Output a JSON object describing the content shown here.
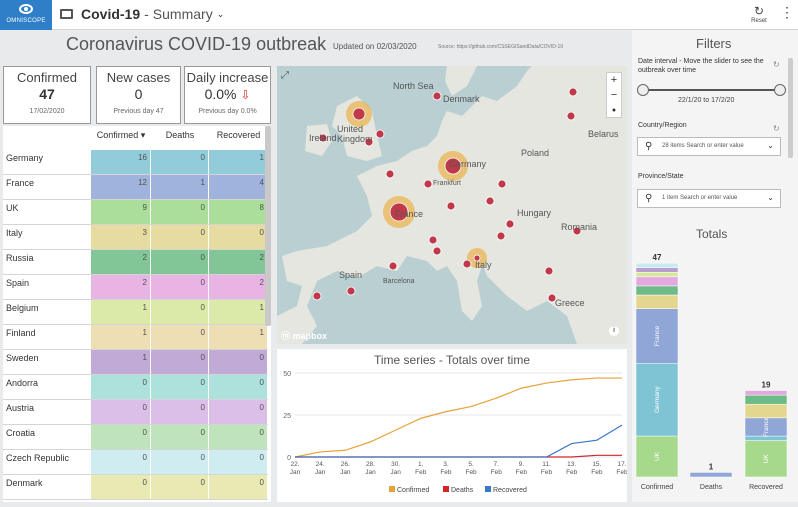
{
  "app": {
    "logo": "OMNISCOPE",
    "title": "Covid-19",
    "separator": "-",
    "subtitle": "Summary",
    "reset_label": "Reset",
    "kebab": "⋮"
  },
  "header": {
    "title": "Coronavirus COVID-19 outbreak",
    "updated": "Updated on 02/03/2020",
    "source": "Source: https://github.com/CSSEGISandData/COVID-19"
  },
  "kpis": [
    {
      "label": "Confirmed",
      "value": "47",
      "foot": "17/02/2020"
    },
    {
      "label": "New cases",
      "value": "0",
      "foot": "Previous day 47"
    },
    {
      "label": "Daily increase",
      "value": "0.0%",
      "arrow": "⇩",
      "foot": "Previous day 0.0%"
    }
  ],
  "table": {
    "columns": [
      "Confirmed",
      "Deaths",
      "Recovered"
    ],
    "rows": [
      {
        "country": "Germany",
        "confirmed": "16",
        "deaths": "0",
        "recovered": "1",
        "color": "#7fc4d4"
      },
      {
        "country": "France",
        "confirmed": "12",
        "deaths": "1",
        "recovered": "4",
        "color": "#8fa6d6"
      },
      {
        "country": "UK",
        "confirmed": "9",
        "deaths": "0",
        "recovered": "8",
        "color": "#9ed98a"
      },
      {
        "country": "Italy",
        "confirmed": "3",
        "deaths": "0",
        "recovered": "0",
        "color": "#e3d78f"
      },
      {
        "country": "Russia",
        "confirmed": "2",
        "deaths": "0",
        "recovered": "2",
        "color": "#6dbb86"
      },
      {
        "country": "Spain",
        "confirmed": "2",
        "deaths": "0",
        "recovered": "2",
        "color": "#e3a8e0"
      },
      {
        "country": "Belgium",
        "confirmed": "1",
        "deaths": "0",
        "recovered": "1",
        "color": "#d5e79a"
      },
      {
        "country": "Finland",
        "confirmed": "1",
        "deaths": "0",
        "recovered": "1",
        "color": "#ead9a8"
      },
      {
        "country": "Sweden",
        "confirmed": "1",
        "deaths": "0",
        "recovered": "0",
        "color": "#b79dd0"
      },
      {
        "country": "Andorra",
        "confirmed": "0",
        "deaths": "0",
        "recovered": "0",
        "color": "#9fdcd6"
      },
      {
        "country": "Austria",
        "confirmed": "0",
        "deaths": "0",
        "recovered": "0",
        "color": "#d7b5e6"
      },
      {
        "country": "Croatia",
        "confirmed": "0",
        "deaths": "0",
        "recovered": "0",
        "color": "#b5e0b0"
      },
      {
        "country": "Czech Republic",
        "confirmed": "0",
        "deaths": "0",
        "recovered": "0",
        "color": "#c7e9ef"
      },
      {
        "country": "Denmark",
        "confirmed": "0",
        "deaths": "0",
        "recovered": "0",
        "color": "#e6e6a8"
      }
    ]
  },
  "map": {
    "attribution": "mapbox",
    "zoom_in": "+",
    "zoom_out": "−",
    "reset_north": "●",
    "places": [
      "North Sea",
      "Denmark",
      "Belarus",
      "Ireland",
      "United Kingdom",
      "Germany",
      "Poland",
      "Frankfurt",
      "France",
      "Hungary",
      "Romania",
      "Italy",
      "Spain",
      "Barcelona",
      "Greece"
    ]
  },
  "timeseries": {
    "title": "Time series - Totals over time",
    "legend": [
      "Confirmed",
      "Deaths",
      "Recovered"
    ],
    "colors": {
      "confirmed": "#e8a23b",
      "deaths": "#d0262c",
      "recovered": "#3b77c7"
    }
  },
  "filters": {
    "title": "Filters",
    "date_label": "Date interval - Move the slider to see the outbreak over time",
    "date_range": "22/1/20 to 17/2/20",
    "country_label": "Country/Region",
    "country_value": "28 items  Search or enter value",
    "province_label": "Province/State",
    "province_value": "1 item  Search or enter value"
  },
  "chart_data": [
    {
      "type": "line",
      "title": "Time series - Totals over time",
      "x": [
        "22. Jan",
        "24. Jan",
        "26. Jan",
        "28. Jan",
        "30. Jan",
        "1. Feb",
        "3. Feb",
        "5. Feb",
        "7. Feb",
        "9. Feb",
        "11. Feb",
        "13. Feb",
        "15. Feb",
        "17. Feb"
      ],
      "ylim": [
        0,
        50
      ],
      "yticks": [
        0,
        25,
        50
      ],
      "series": [
        {
          "name": "Confirmed",
          "values": [
            0,
            3,
            4,
            9,
            16,
            23,
            27,
            30,
            35,
            41,
            44,
            46,
            47,
            47
          ]
        },
        {
          "name": "Deaths",
          "values": [
            0,
            0,
            0,
            0,
            0,
            0,
            0,
            0,
            0,
            0,
            0,
            0,
            1,
            1
          ]
        },
        {
          "name": "Recovered",
          "values": [
            0,
            0,
            0,
            0,
            0,
            0,
            0,
            0,
            0,
            0,
            0,
            8,
            10,
            19
          ]
        }
      ]
    },
    {
      "type": "bar",
      "title": "Totals",
      "categories": [
        "Confirmed",
        "Deaths",
        "Recovered"
      ],
      "values": [
        47,
        1,
        19
      ],
      "segments": [
        {
          "name": "UK",
          "values": [
            9,
            0,
            8
          ]
        },
        {
          "name": "Germany",
          "values": [
            16,
            0,
            1
          ]
        },
        {
          "name": "France",
          "values": [
            12,
            1,
            4
          ]
        }
      ]
    }
  ]
}
